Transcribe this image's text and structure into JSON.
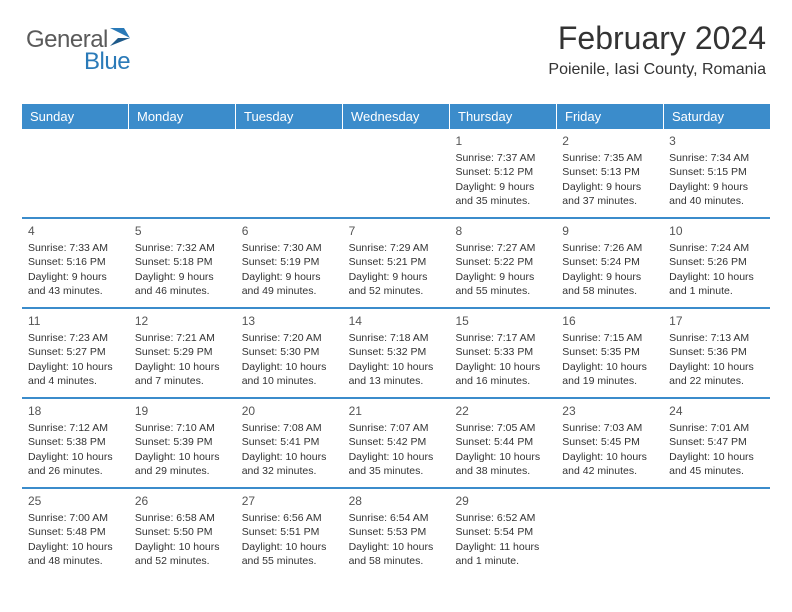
{
  "logo": {
    "text1": "General",
    "text2": "Blue",
    "text_color": "#5a5a5a",
    "highlight_color": "#2a7ab8"
  },
  "header": {
    "title": "February 2024",
    "location": "Poienile, Iasi County, Romania"
  },
  "colors": {
    "header_bg": "#3b8ccb",
    "header_text": "#ffffff",
    "border": "#3b8ccb",
    "text": "#333333"
  },
  "day_names": [
    "Sunday",
    "Monday",
    "Tuesday",
    "Wednesday",
    "Thursday",
    "Friday",
    "Saturday"
  ],
  "weeks": [
    [
      null,
      null,
      null,
      null,
      {
        "num": "1",
        "sunrise": "Sunrise: 7:37 AM",
        "sunset": "Sunset: 5:12 PM",
        "daylight": "Daylight: 9 hours and 35 minutes."
      },
      {
        "num": "2",
        "sunrise": "Sunrise: 7:35 AM",
        "sunset": "Sunset: 5:13 PM",
        "daylight": "Daylight: 9 hours and 37 minutes."
      },
      {
        "num": "3",
        "sunrise": "Sunrise: 7:34 AM",
        "sunset": "Sunset: 5:15 PM",
        "daylight": "Daylight: 9 hours and 40 minutes."
      }
    ],
    [
      {
        "num": "4",
        "sunrise": "Sunrise: 7:33 AM",
        "sunset": "Sunset: 5:16 PM",
        "daylight": "Daylight: 9 hours and 43 minutes."
      },
      {
        "num": "5",
        "sunrise": "Sunrise: 7:32 AM",
        "sunset": "Sunset: 5:18 PM",
        "daylight": "Daylight: 9 hours and 46 minutes."
      },
      {
        "num": "6",
        "sunrise": "Sunrise: 7:30 AM",
        "sunset": "Sunset: 5:19 PM",
        "daylight": "Daylight: 9 hours and 49 minutes."
      },
      {
        "num": "7",
        "sunrise": "Sunrise: 7:29 AM",
        "sunset": "Sunset: 5:21 PM",
        "daylight": "Daylight: 9 hours and 52 minutes."
      },
      {
        "num": "8",
        "sunrise": "Sunrise: 7:27 AM",
        "sunset": "Sunset: 5:22 PM",
        "daylight": "Daylight: 9 hours and 55 minutes."
      },
      {
        "num": "9",
        "sunrise": "Sunrise: 7:26 AM",
        "sunset": "Sunset: 5:24 PM",
        "daylight": "Daylight: 9 hours and 58 minutes."
      },
      {
        "num": "10",
        "sunrise": "Sunrise: 7:24 AM",
        "sunset": "Sunset: 5:26 PM",
        "daylight": "Daylight: 10 hours and 1 minute."
      }
    ],
    [
      {
        "num": "11",
        "sunrise": "Sunrise: 7:23 AM",
        "sunset": "Sunset: 5:27 PM",
        "daylight": "Daylight: 10 hours and 4 minutes."
      },
      {
        "num": "12",
        "sunrise": "Sunrise: 7:21 AM",
        "sunset": "Sunset: 5:29 PM",
        "daylight": "Daylight: 10 hours and 7 minutes."
      },
      {
        "num": "13",
        "sunrise": "Sunrise: 7:20 AM",
        "sunset": "Sunset: 5:30 PM",
        "daylight": "Daylight: 10 hours and 10 minutes."
      },
      {
        "num": "14",
        "sunrise": "Sunrise: 7:18 AM",
        "sunset": "Sunset: 5:32 PM",
        "daylight": "Daylight: 10 hours and 13 minutes."
      },
      {
        "num": "15",
        "sunrise": "Sunrise: 7:17 AM",
        "sunset": "Sunset: 5:33 PM",
        "daylight": "Daylight: 10 hours and 16 minutes."
      },
      {
        "num": "16",
        "sunrise": "Sunrise: 7:15 AM",
        "sunset": "Sunset: 5:35 PM",
        "daylight": "Daylight: 10 hours and 19 minutes."
      },
      {
        "num": "17",
        "sunrise": "Sunrise: 7:13 AM",
        "sunset": "Sunset: 5:36 PM",
        "daylight": "Daylight: 10 hours and 22 minutes."
      }
    ],
    [
      {
        "num": "18",
        "sunrise": "Sunrise: 7:12 AM",
        "sunset": "Sunset: 5:38 PM",
        "daylight": "Daylight: 10 hours and 26 minutes."
      },
      {
        "num": "19",
        "sunrise": "Sunrise: 7:10 AM",
        "sunset": "Sunset: 5:39 PM",
        "daylight": "Daylight: 10 hours and 29 minutes."
      },
      {
        "num": "20",
        "sunrise": "Sunrise: 7:08 AM",
        "sunset": "Sunset: 5:41 PM",
        "daylight": "Daylight: 10 hours and 32 minutes."
      },
      {
        "num": "21",
        "sunrise": "Sunrise: 7:07 AM",
        "sunset": "Sunset: 5:42 PM",
        "daylight": "Daylight: 10 hours and 35 minutes."
      },
      {
        "num": "22",
        "sunrise": "Sunrise: 7:05 AM",
        "sunset": "Sunset: 5:44 PM",
        "daylight": "Daylight: 10 hours and 38 minutes."
      },
      {
        "num": "23",
        "sunrise": "Sunrise: 7:03 AM",
        "sunset": "Sunset: 5:45 PM",
        "daylight": "Daylight: 10 hours and 42 minutes."
      },
      {
        "num": "24",
        "sunrise": "Sunrise: 7:01 AM",
        "sunset": "Sunset: 5:47 PM",
        "daylight": "Daylight: 10 hours and 45 minutes."
      }
    ],
    [
      {
        "num": "25",
        "sunrise": "Sunrise: 7:00 AM",
        "sunset": "Sunset: 5:48 PM",
        "daylight": "Daylight: 10 hours and 48 minutes."
      },
      {
        "num": "26",
        "sunrise": "Sunrise: 6:58 AM",
        "sunset": "Sunset: 5:50 PM",
        "daylight": "Daylight: 10 hours and 52 minutes."
      },
      {
        "num": "27",
        "sunrise": "Sunrise: 6:56 AM",
        "sunset": "Sunset: 5:51 PM",
        "daylight": "Daylight: 10 hours and 55 minutes."
      },
      {
        "num": "28",
        "sunrise": "Sunrise: 6:54 AM",
        "sunset": "Sunset: 5:53 PM",
        "daylight": "Daylight: 10 hours and 58 minutes."
      },
      {
        "num": "29",
        "sunrise": "Sunrise: 6:52 AM",
        "sunset": "Sunset: 5:54 PM",
        "daylight": "Daylight: 11 hours and 1 minute."
      },
      null,
      null
    ]
  ]
}
